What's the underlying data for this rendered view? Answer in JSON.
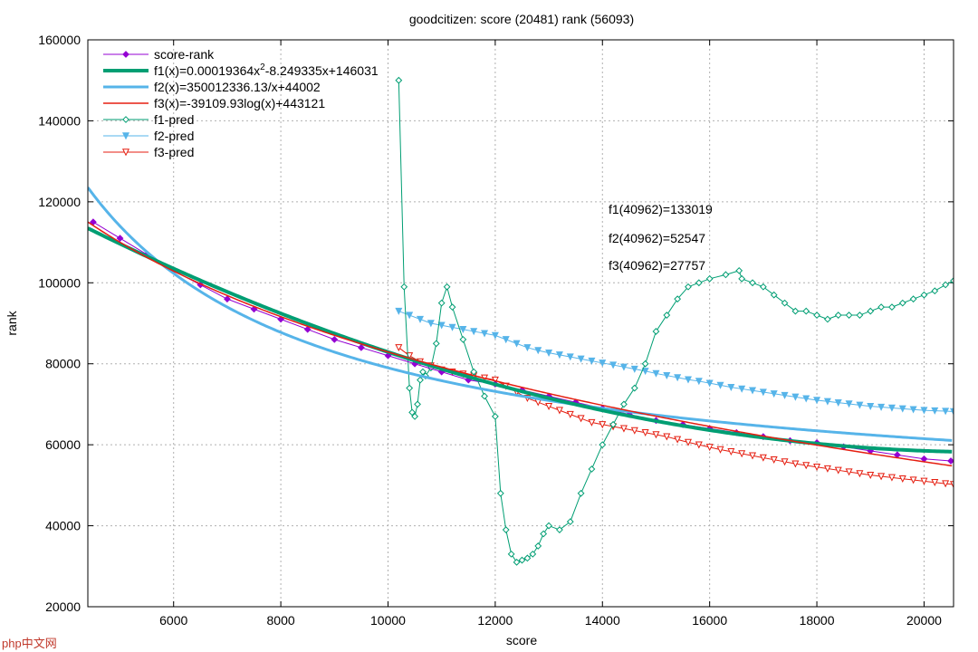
{
  "chart_data": {
    "type": "line",
    "title": "goodcitizen: score (20481) rank (56093)",
    "xlabel": "score",
    "ylabel": "rank",
    "xlim": [
      4400,
      20550
    ],
    "ylim": [
      20000,
      160000
    ],
    "xticks": [
      "6000",
      "8000",
      "10000",
      "12000",
      "14000",
      "16000",
      "18000",
      "20000"
    ],
    "xtick_values": [
      6000,
      8000,
      10000,
      12000,
      14000,
      16000,
      18000,
      20000
    ],
    "yticks": [
      "20000",
      "40000",
      "60000",
      "80000",
      "100000",
      "120000",
      "140000",
      "160000"
    ],
    "ytick_values": [
      20000,
      40000,
      60000,
      80000,
      100000,
      120000,
      140000,
      160000
    ],
    "grid": true,
    "annotations": [
      "f1(40962)=133019",
      "f2(40962)=52547",
      "f3(40962)=27757"
    ],
    "legend_placement": "top-left",
    "series": [
      {
        "name": "score-rank",
        "legend": "score-rank",
        "color": "#9400d3",
        "marker": "diamond-filled",
        "x": [
          4500,
          5000,
          5500,
          6000,
          6500,
          7000,
          7500,
          8000,
          8500,
          9000,
          9500,
          10000,
          10500,
          11000,
          11500,
          12000,
          12500,
          13000,
          13500,
          14000,
          14500,
          15000,
          15500,
          16000,
          16500,
          17000,
          17500,
          18000,
          18500,
          19000,
          19500,
          20000,
          20500
        ],
        "y": [
          115000,
          111000,
          107000,
          103000,
          99500,
          96000,
          93500,
          91000,
          88500,
          86000,
          84000,
          82000,
          80000,
          78000,
          76000,
          75000,
          73500,
          72000,
          70500,
          69000,
          67500,
          66000,
          65000,
          64000,
          63000,
          62000,
          61000,
          60500,
          59500,
          58500,
          57500,
          56500,
          56000
        ]
      },
      {
        "name": "f1",
        "legend": "f1(x)=0.00019364x",
        "legend_sup": "2",
        "legend_tail": "-8.249335x+146031",
        "color": "#009e73",
        "a": 0.00019364,
        "b": -8.249335,
        "c": 146031
      },
      {
        "name": "f2",
        "legend": "f2(x)=350012336.13/x+44002",
        "color": "#56b4e9",
        "k": 350012336.13,
        "c": 44002
      },
      {
        "name": "f3",
        "legend": "f3(x)=-39109.93log(x)+443121",
        "color": "#e51e10",
        "k": -39109.93,
        "c": 443121
      },
      {
        "name": "f1-pred",
        "legend": "f1-pred",
        "color": "#009e73",
        "marker": "diamond-open",
        "x": [
          10200,
          10300,
          10400,
          10450,
          10500,
          10550,
          10600,
          10650,
          10700,
          10800,
          10900,
          11000,
          11100,
          11200,
          11400,
          11600,
          11800,
          12000,
          12100,
          12200,
          12300,
          12400,
          12500,
          12600,
          12700,
          12800,
          12900,
          13000,
          13200,
          13400,
          13600,
          13800,
          14000,
          14200,
          14400,
          14600,
          14800,
          15000,
          15200,
          15400,
          15600,
          15800,
          16000,
          16300,
          16550,
          16600,
          16800,
          17000,
          17200,
          17400,
          17600,
          17800,
          18000,
          18200,
          18400,
          18600,
          18800,
          19000,
          19200,
          19400,
          19600,
          19800,
          20000,
          20200,
          20400,
          20550
        ],
        "y": [
          150000,
          99000,
          74000,
          68000,
          67000,
          70000,
          76000,
          78000,
          77000,
          79000,
          85000,
          95000,
          99000,
          94000,
          86000,
          78000,
          72000,
          67000,
          48000,
          39000,
          33000,
          31000,
          31500,
          32000,
          33000,
          35000,
          38000,
          40000,
          39000,
          41000,
          48000,
          54000,
          60000,
          65000,
          70000,
          74000,
          80000,
          88000,
          92000,
          96000,
          99000,
          100000,
          101000,
          102000,
          103000,
          101000,
          100000,
          99000,
          97000,
          95000,
          93000,
          93000,
          92000,
          91000,
          92000,
          92000,
          92000,
          93000,
          94000,
          94000,
          95000,
          96000,
          97000,
          98000,
          99500,
          100500
        ]
      },
      {
        "name": "f2-pred",
        "legend": "f2-pred",
        "color": "#56b4e9",
        "marker": "triangle-down-filled",
        "x": [
          10200,
          10400,
          10600,
          10800,
          11000,
          11200,
          11400,
          11600,
          11800,
          12000,
          12200,
          12400,
          12600,
          12800,
          13000,
          13200,
          13400,
          13600,
          13800,
          14000,
          14200,
          14400,
          14600,
          14800,
          15000,
          15200,
          15400,
          15600,
          15800,
          16000,
          16200,
          16400,
          16600,
          16800,
          17000,
          17200,
          17400,
          17600,
          17800,
          18000,
          18200,
          18400,
          18600,
          18800,
          19000,
          19200,
          19400,
          19600,
          19800,
          20000,
          20200,
          20400,
          20550
        ],
        "y": [
          93000,
          92000,
          91000,
          90000,
          89500,
          89000,
          88500,
          88000,
          87500,
          87000,
          86000,
          85000,
          84000,
          83300,
          82700,
          82200,
          81700,
          81200,
          80700,
          80200,
          79700,
          79200,
          78700,
          78200,
          77600,
          77100,
          76600,
          76100,
          75700,
          75200,
          74700,
          74200,
          73800,
          73400,
          73000,
          72600,
          72200,
          71800,
          71400,
          71000,
          70700,
          70400,
          70100,
          69800,
          69500,
          69300,
          69100,
          68900,
          68700,
          68500,
          68400,
          68300,
          68200
        ]
      },
      {
        "name": "f3-pred",
        "legend": "f3-pred",
        "color": "#e51e10",
        "marker": "triangle-down-open",
        "x": [
          10200,
          10400,
          10600,
          10800,
          11000,
          11200,
          11400,
          11600,
          11800,
          12000,
          12200,
          12400,
          12600,
          12800,
          13000,
          13200,
          13400,
          13600,
          13800,
          14000,
          14200,
          14400,
          14600,
          14800,
          15000,
          15200,
          15400,
          15600,
          15800,
          16000,
          16200,
          16400,
          16600,
          16800,
          17000,
          17200,
          17400,
          17600,
          17800,
          18000,
          18200,
          18400,
          18600,
          18800,
          19000,
          19200,
          19400,
          19600,
          19800,
          20000,
          20200,
          20400,
          20550
        ],
        "y": [
          84000,
          82000,
          80500,
          79500,
          78500,
          78000,
          77500,
          77000,
          76500,
          76000,
          74500,
          73000,
          71500,
          70500,
          69500,
          68500,
          67500,
          66500,
          65500,
          65000,
          64500,
          64000,
          63500,
          63000,
          62500,
          62000,
          61300,
          60600,
          60000,
          59400,
          58800,
          58300,
          57800,
          57300,
          56800,
          56300,
          55800,
          55300,
          54900,
          54500,
          54100,
          53700,
          53300,
          52900,
          52500,
          52200,
          51900,
          51600,
          51300,
          51000,
          50700,
          50400,
          50200
        ]
      }
    ]
  },
  "watermark": "php中文网"
}
